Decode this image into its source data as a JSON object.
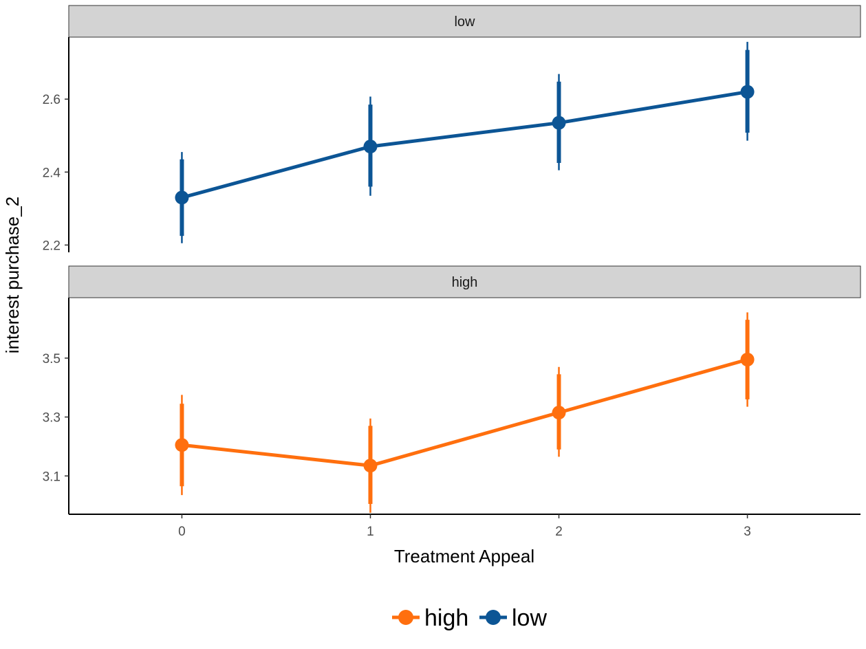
{
  "chart_data": {
    "type": "line",
    "xlabel": "Treatment Appeal",
    "ylabel": "interest purchase_2",
    "x_ticks": [
      "0",
      "1",
      "2",
      "3"
    ],
    "xlim": [
      -0.6,
      3.6
    ],
    "grid": false,
    "legend_position": "bottom",
    "legend": [
      {
        "name": "high",
        "color": "#FF6F0E"
      },
      {
        "name": "low",
        "color": "#0C5595"
      }
    ],
    "panels": [
      {
        "strip": "low",
        "series": "low",
        "color": "#0C5595",
        "ylim": [
          2.18,
          2.77
        ],
        "y_ticks": [
          "2.2",
          "2.4",
          "2.6"
        ],
        "x": [
          0,
          1,
          2,
          3
        ],
        "y": [
          2.33,
          2.47,
          2.535,
          2.62
        ],
        "ci_inner": [
          [
            2.225,
            2.435
          ],
          [
            2.36,
            2.585
          ],
          [
            2.425,
            2.648
          ],
          [
            2.508,
            2.735
          ]
        ],
        "ci_outer": [
          [
            2.205,
            2.455
          ],
          [
            2.335,
            2.607
          ],
          [
            2.405,
            2.669
          ],
          [
            2.486,
            2.757
          ]
        ]
      },
      {
        "strip": "high",
        "series": "high",
        "color": "#FF6F0E",
        "ylim": [
          2.97,
          3.705
        ],
        "y_ticks": [
          "3.1",
          "3.3",
          "3.5"
        ],
        "x": [
          0,
          1,
          2,
          3
        ],
        "y": [
          3.205,
          3.135,
          3.315,
          3.495
        ],
        "ci_inner": [
          [
            3.065,
            3.345
          ],
          [
            3.005,
            3.27
          ],
          [
            3.19,
            3.445
          ],
          [
            3.36,
            3.63
          ]
        ],
        "ci_outer": [
          [
            3.035,
            3.375
          ],
          [
            2.975,
            3.295
          ],
          [
            3.165,
            3.47
          ],
          [
            3.335,
            3.655
          ]
        ]
      }
    ]
  }
}
